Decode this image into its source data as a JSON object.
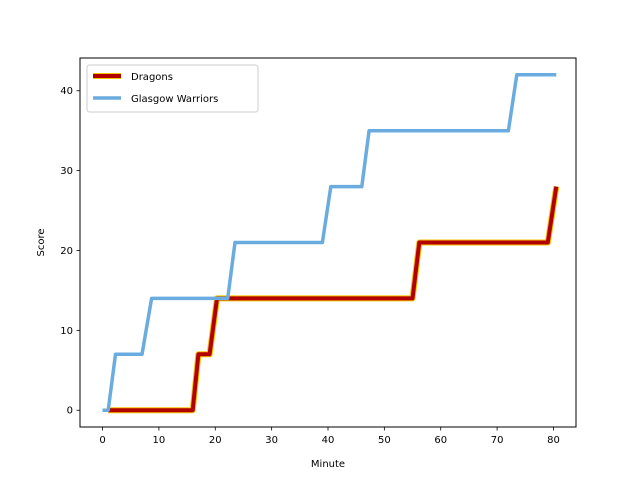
{
  "chart_data": {
    "type": "line",
    "title": "",
    "xlabel": "Minute",
    "ylabel": "Score",
    "xlim": [
      -4,
      84
    ],
    "ylim": [
      -2.1,
      44.1
    ],
    "xticks": [
      0,
      10,
      20,
      30,
      40,
      50,
      60,
      70,
      80
    ],
    "yticks": [
      0,
      10,
      20,
      30,
      40
    ],
    "grid": false,
    "legend_position": "upper-left",
    "series": [
      {
        "name": "Dragons",
        "color": "#b20000",
        "edge_color": "#f5c300",
        "x": [
          1,
          16,
          17,
          18,
          19,
          20.3,
          21,
          55,
          56.2,
          57,
          79,
          80.5
        ],
        "y": [
          0,
          0,
          7,
          7,
          7,
          14,
          14,
          14,
          21,
          21,
          21,
          28
        ]
      },
      {
        "name": "Glasgow Warriors",
        "color": "#6aace0",
        "x": [
          0,
          1,
          2.3,
          7,
          8.7,
          22.2,
          23.5,
          39,
          40.5,
          46,
          47.3,
          72,
          73.5,
          80.5
        ],
        "y": [
          0,
          0,
          7,
          7,
          14,
          14,
          21,
          21,
          28,
          28,
          35,
          35,
          42,
          42
        ]
      }
    ]
  }
}
